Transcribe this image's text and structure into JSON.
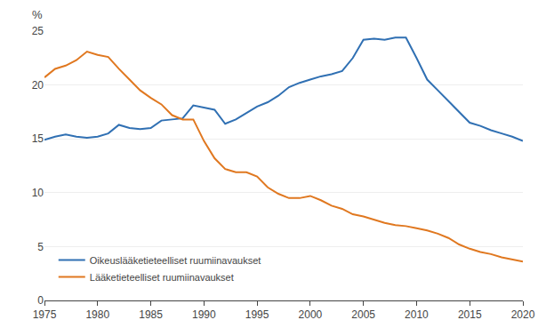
{
  "chart_data": {
    "type": "line",
    "ylabel": "%",
    "x": [
      1975,
      1976,
      1977,
      1978,
      1979,
      1980,
      1981,
      1982,
      1983,
      1984,
      1985,
      1986,
      1987,
      1988,
      1989,
      1990,
      1991,
      1992,
      1993,
      1994,
      1995,
      1996,
      1997,
      1998,
      1999,
      2000,
      2001,
      2002,
      2003,
      2004,
      2005,
      2006,
      2007,
      2008,
      2009,
      2010,
      2011,
      2012,
      2013,
      2014,
      2015,
      2016,
      2017,
      2018,
      2019,
      2020
    ],
    "series": [
      {
        "name": "Oikeuslääketieteelliset ruumiinavaukset",
        "color": "#3070b3",
        "values": [
          14.9,
          15.2,
          15.4,
          15.2,
          15.1,
          15.2,
          15.5,
          16.3,
          16.0,
          15.9,
          16.0,
          16.7,
          16.8,
          16.9,
          18.1,
          17.9,
          17.7,
          16.4,
          16.8,
          17.4,
          18.0,
          18.4,
          19.0,
          19.8,
          20.2,
          20.5,
          20.8,
          21.0,
          21.3,
          22.5,
          24.2,
          24.3,
          24.2,
          24.4,
          24.4,
          22.5,
          20.5,
          19.5,
          18.5,
          17.5,
          16.5,
          16.2,
          15.8,
          15.5,
          15.2,
          14.8
        ]
      },
      {
        "name": "Lääketieteelliset ruumiinavaukset",
        "color": "#e07820",
        "values": [
          20.7,
          21.5,
          21.8,
          22.3,
          23.1,
          22.8,
          22.6,
          21.5,
          20.5,
          19.5,
          18.8,
          18.2,
          17.2,
          16.8,
          16.8,
          14.8,
          13.2,
          12.2,
          11.9,
          11.9,
          11.5,
          10.5,
          9.9,
          9.5,
          9.5,
          9.7,
          9.3,
          8.8,
          8.5,
          8.0,
          7.8,
          7.5,
          7.2,
          7.0,
          6.9,
          6.7,
          6.5,
          6.2,
          5.8,
          5.2,
          4.8,
          4.5,
          4.3,
          4.0,
          3.8,
          3.6
        ]
      }
    ],
    "xlim": [
      1975,
      2020
    ],
    "ylim": [
      0,
      25
    ],
    "xticks": [
      1975,
      1980,
      1985,
      1990,
      1995,
      2000,
      2005,
      2010,
      2015,
      2020
    ],
    "yticks": [
      0,
      5,
      10,
      15,
      20,
      25
    ],
    "grid": true,
    "legend": "lower left"
  }
}
